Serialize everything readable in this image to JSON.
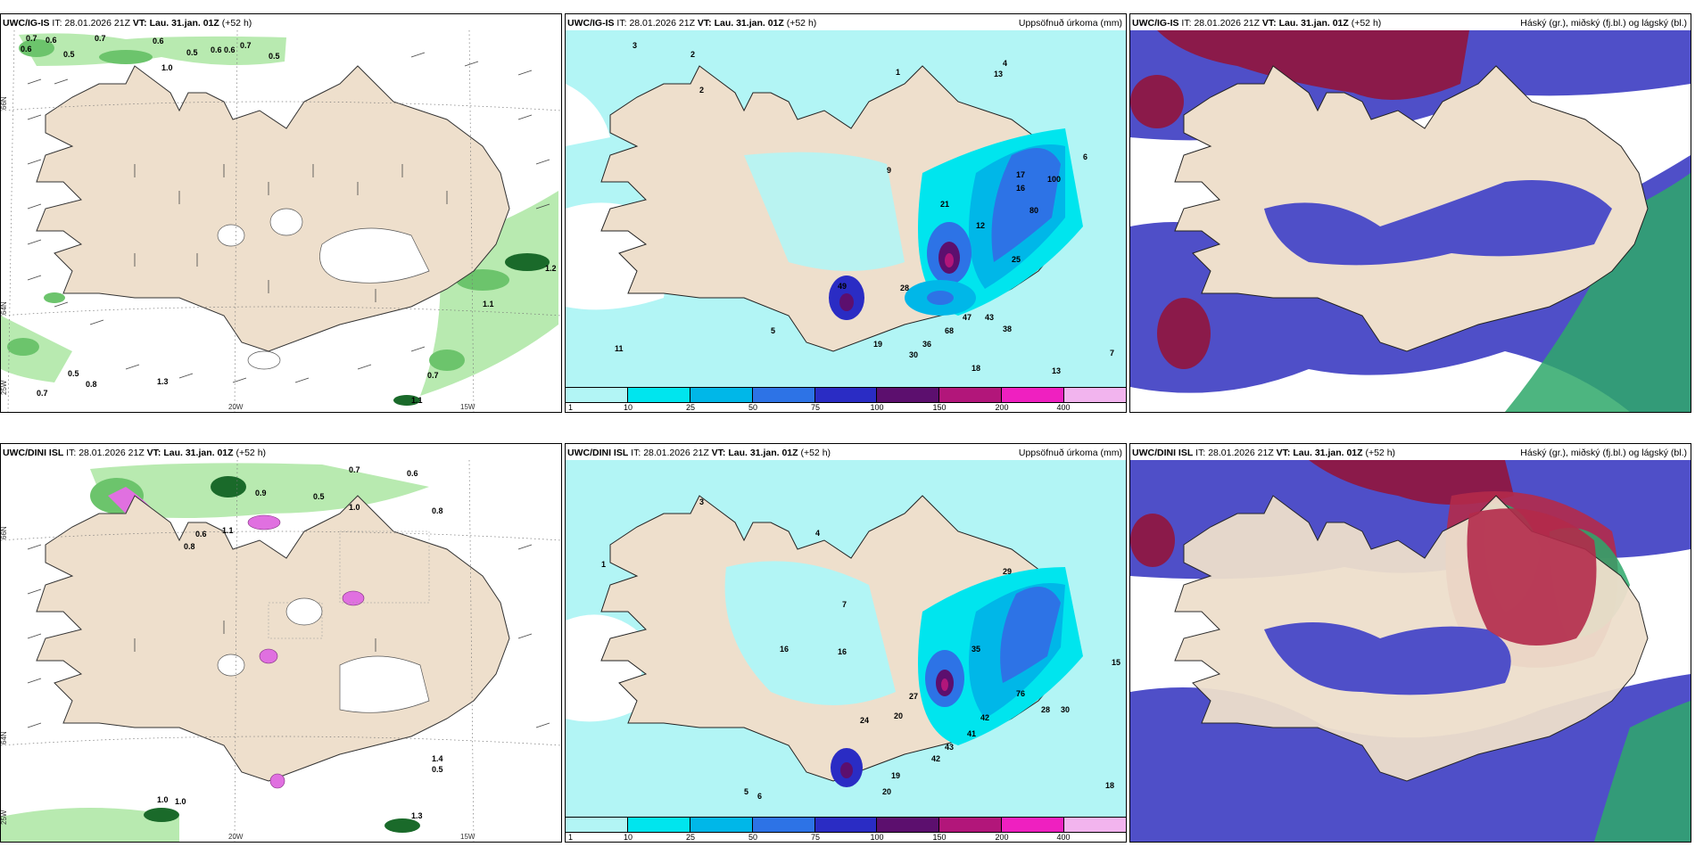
{
  "panels": [
    {
      "model": "UWC/IG-IS",
      "it_label": "IT:",
      "it": "28.01.2026 21Z",
      "vt_label": "VT:",
      "vt": "Lau. 31.jan. 01Z",
      "lead": "(+52 h)",
      "right": ""
    },
    {
      "model": "UWC/IG-IS",
      "it_label": "IT:",
      "it": "28.01.2026 21Z",
      "vt_label": "VT:",
      "vt": "Lau. 31.jan. 01Z",
      "lead": "(+52 h)",
      "right": "Uppsöfnuð úrkoma (mm)"
    },
    {
      "model": "UWC/IG-IS",
      "it_label": "IT:",
      "it": "28.01.2026 21Z",
      "vt_label": "VT:",
      "vt": "Lau. 31.jan. 01Z",
      "lead": "(+52 h)",
      "right": "Háský (gr.), miðský (fj.bl.) og lágský (bl.)"
    },
    {
      "model": "UWC/DINI ISL",
      "it_label": "IT:",
      "it": "28.01.2026 21Z",
      "vt_label": "VT:",
      "vt": "Lau. 31.jan. 01Z",
      "lead": "(+52 h)",
      "right": ""
    },
    {
      "model": "UWC/DINI ISL",
      "it_label": "IT:",
      "it": "28.01.2026 21Z",
      "vt_label": "VT:",
      "vt": "Lau. 31.jan. 01Z",
      "lead": "(+52 h)",
      "right": "Uppsöfnuð úrkoma (mm)"
    },
    {
      "model": "UWC/DINI ISL",
      "it_label": "IT:",
      "it": "28.01.2026 21Z",
      "vt_label": "VT:",
      "vt": "Lau. 31.jan. 01Z",
      "lead": "(+52 h)",
      "right": "Háský (gr.), miðský (fj.bl.) og lágský (bl.)"
    }
  ],
  "axis_labels": {
    "lon20": "20W",
    "lon15": "15W",
    "lat66": "66N",
    "lat64": "64N",
    "lon25": "25W"
  },
  "colorbar": {
    "ticks": [
      "1",
      "10",
      "25",
      "50",
      "75",
      "100",
      "150",
      "200",
      "400"
    ],
    "colors": [
      "#b2f5f5",
      "#00e5ee",
      "#00b7e8",
      "#2d73e6",
      "#2a2cc4",
      "#5c0f6e",
      "#b2167a",
      "#ef20c0",
      "#f2b4ee"
    ]
  },
  "wind_labels_top": [
    "0.7",
    "0.6",
    "0.6",
    "0.5",
    "0.7",
    "0.6",
    "0.5",
    "0.6",
    "0.6",
    "0.7",
    "0.5",
    "1.0",
    "1.2",
    "1.1",
    "0.5",
    "0.8",
    "0.7",
    "1.3",
    "0.7",
    "1.1"
  ],
  "wind_labels_bottom": [
    "0.7",
    "0.6",
    "0.9",
    "0.5",
    "1.0",
    "0.8",
    "0.6",
    "0.8",
    "1.1",
    "1.4",
    "0.5",
    "1.0",
    "1.0",
    "1.3"
  ],
  "precip_labels_top": [
    "3",
    "2",
    "4",
    "13",
    "1",
    "2",
    "9",
    "6",
    "17",
    "16",
    "21",
    "80",
    "100",
    "12",
    "28",
    "49",
    "25",
    "47",
    "43",
    "38",
    "68",
    "36",
    "30",
    "19",
    "18",
    "13",
    "11",
    "5",
    "7"
  ],
  "precip_labels_bottom": [
    "1",
    "3",
    "4",
    "7",
    "16",
    "16",
    "15",
    "29",
    "35",
    "42",
    "41",
    "43",
    "42",
    "20",
    "24",
    "19",
    "18",
    "20",
    "27",
    "76",
    "28",
    "30",
    "5",
    "6"
  ],
  "colors": {
    "land": "#eedfcc",
    "green_light": "#b8eab0",
    "green_mid": "#6cc46c",
    "green_dark": "#1a6a2a",
    "precip_bg": "#b2f5f5",
    "cloud_high": "#8b1a4a",
    "cloud_mid": "#4f4fc8",
    "cloud_low": "#2ea86a"
  }
}
